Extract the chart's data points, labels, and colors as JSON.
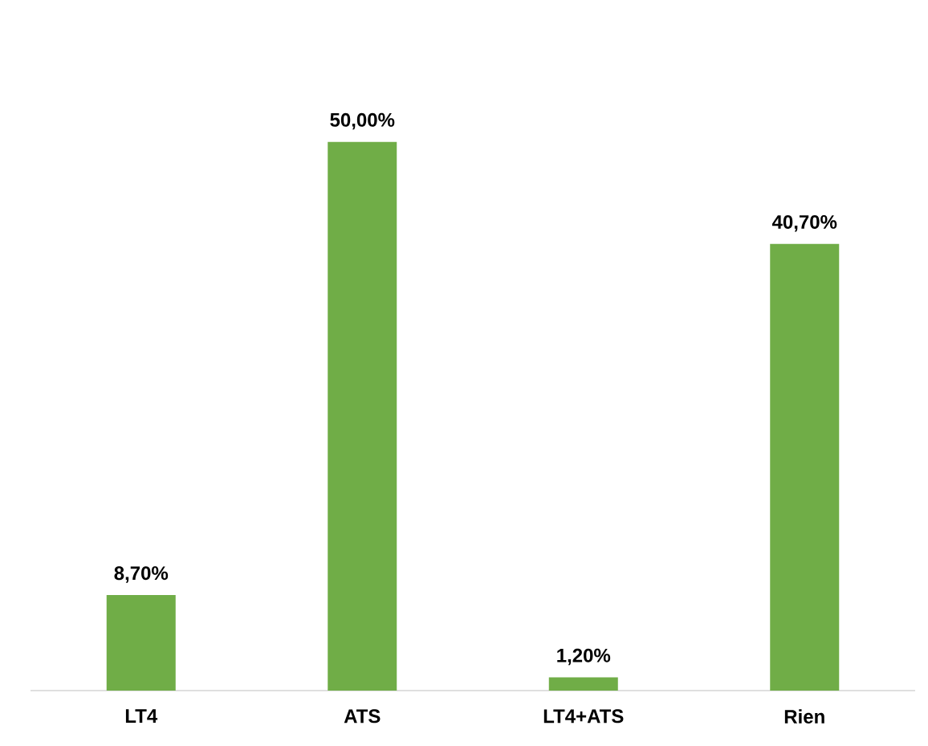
{
  "chart_data": {
    "type": "bar",
    "categories": [
      "LT4",
      "ATS",
      "LT4+ATS",
      "Rien"
    ],
    "values": [
      8.7,
      50,
      1.2,
      40.7
    ],
    "value_labels": [
      "8,70%",
      "50,00%",
      "1,20%",
      "40,70%"
    ],
    "color": "#70ad47"
  }
}
